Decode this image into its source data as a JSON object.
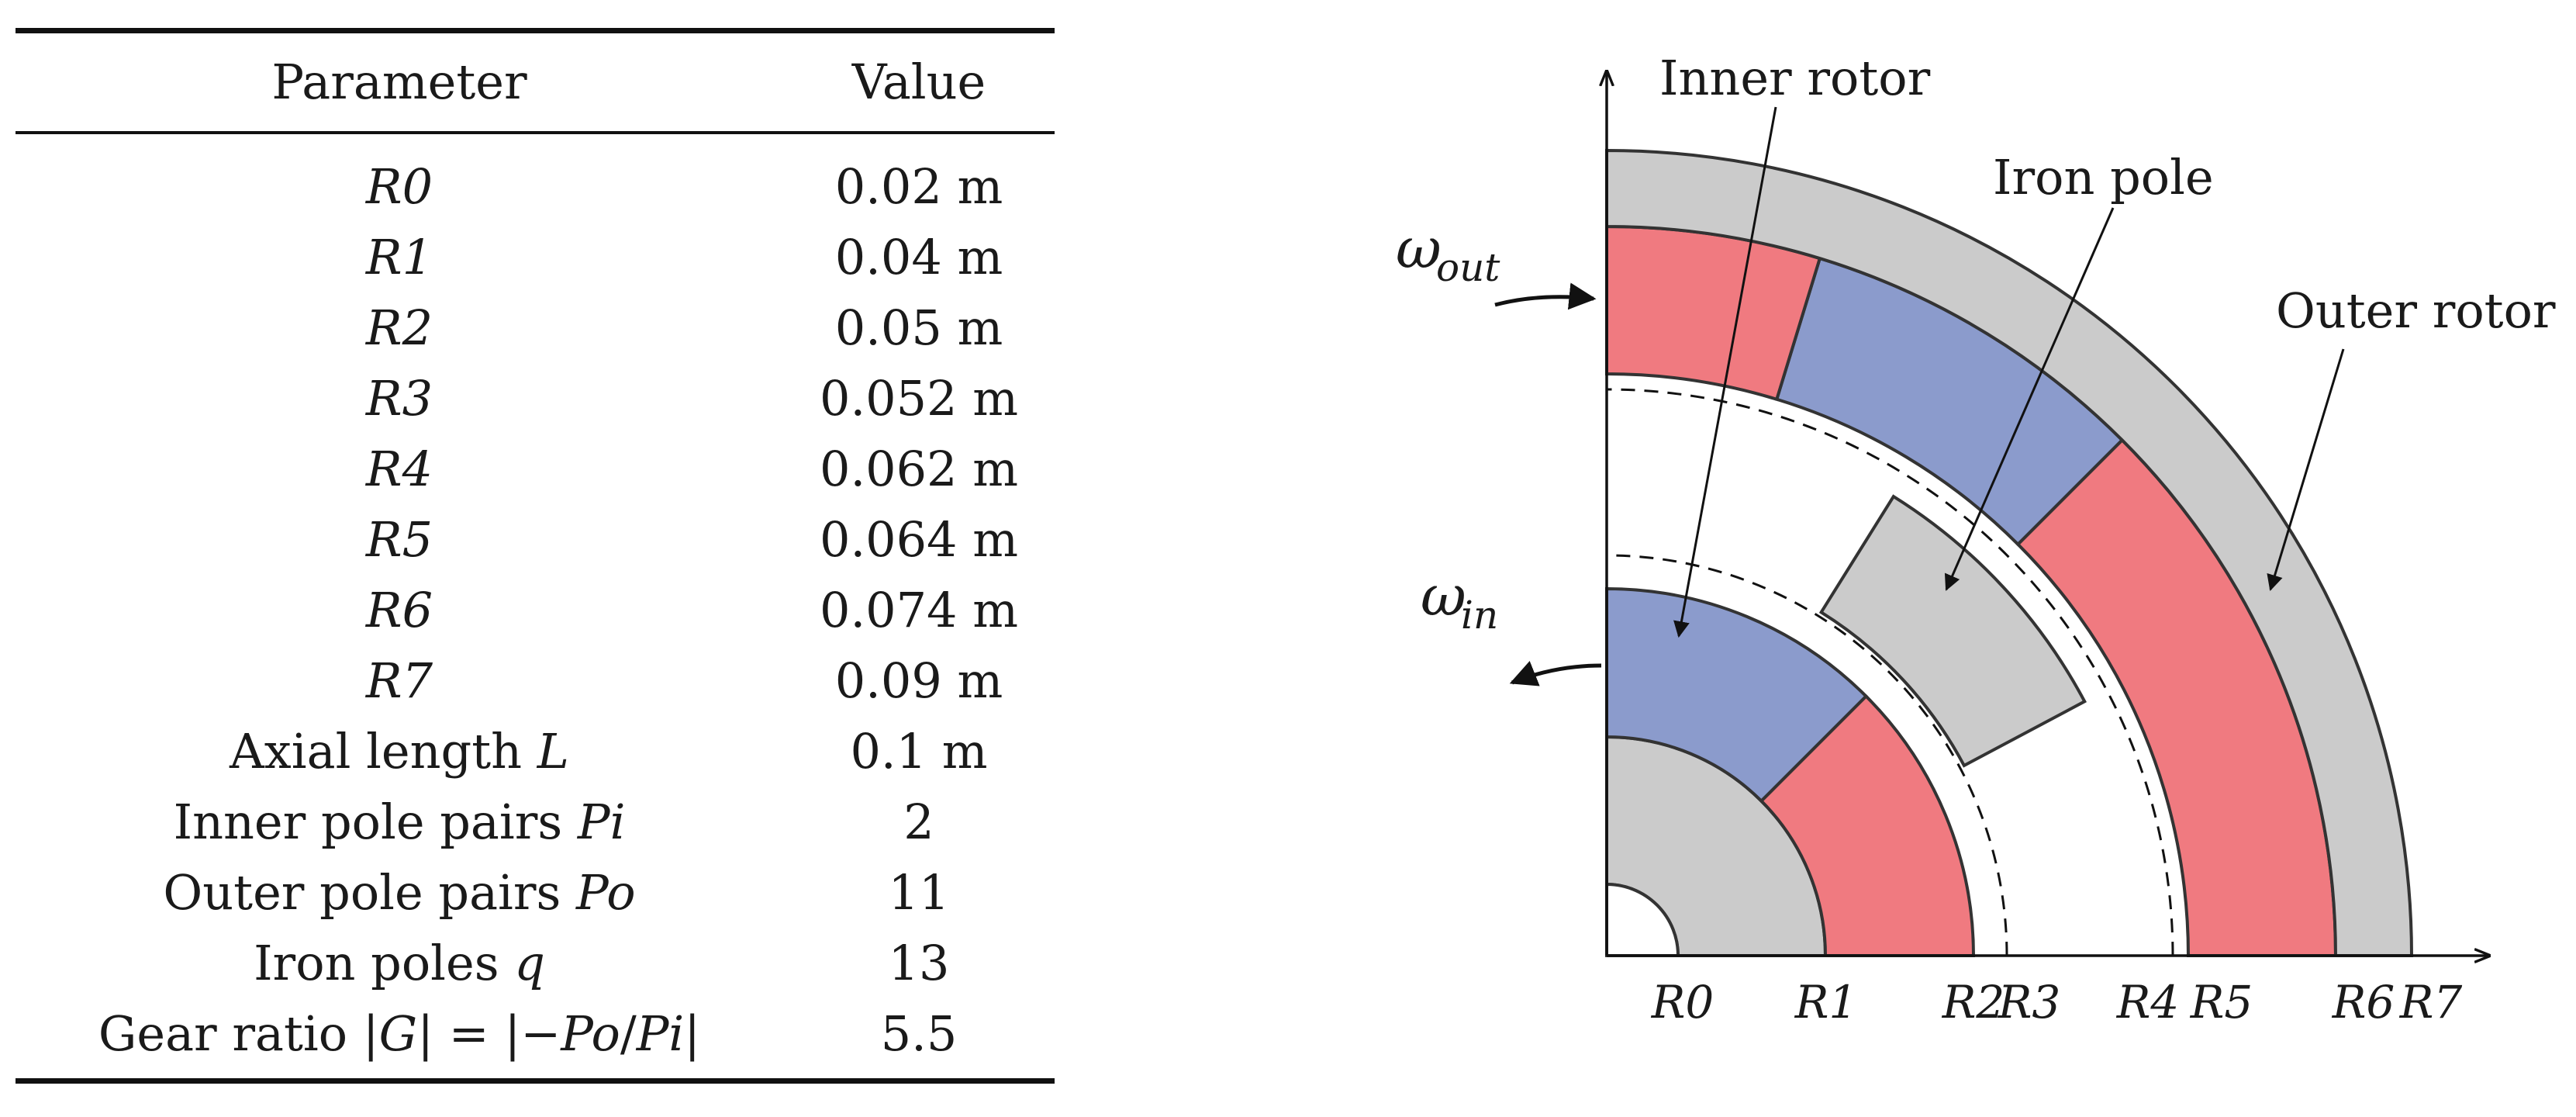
{
  "table": {
    "headers": {
      "parameter": "Parameter",
      "value": "Value"
    },
    "rows": [
      {
        "param_plain": "",
        "param_italic": "R0",
        "value": "0.02 m"
      },
      {
        "param_plain": "",
        "param_italic": "R1",
        "value": "0.04 m"
      },
      {
        "param_plain": "",
        "param_italic": "R2",
        "value": "0.05 m"
      },
      {
        "param_plain": "",
        "param_italic": "R3",
        "value": "0.052 m"
      },
      {
        "param_plain": "",
        "param_italic": "R4",
        "value": "0.062 m"
      },
      {
        "param_plain": "",
        "param_italic": "R5",
        "value": "0.064 m"
      },
      {
        "param_plain": "",
        "param_italic": "R6",
        "value": "0.074 m"
      },
      {
        "param_plain": "",
        "param_italic": "R7",
        "value": "0.09 m"
      },
      {
        "param_plain": "Axial length ",
        "param_italic": "L",
        "value": "0.1 m"
      },
      {
        "param_plain": "Inner pole pairs ",
        "param_italic": "Pi",
        "value": "2"
      },
      {
        "param_plain": "Outer pole pairs ",
        "param_italic": "Po",
        "value": "11"
      },
      {
        "param_plain": "Iron poles ",
        "param_italic": "q",
        "value": "13"
      }
    ],
    "gear_row": {
      "prefix": "Gear ratio |",
      "g": "G",
      "middle": "| = |−",
      "po": "Po",
      "slash": "/",
      "pi": "Pi",
      "suffix": "|",
      "value": "5.5"
    }
  },
  "diagram": {
    "labels": {
      "inner_rotor": "Inner rotor",
      "iron_pole": "Iron pole",
      "outer_rotor": "Outer rotor",
      "omega_out_symbol": "ω",
      "omega_out_sub": "out",
      "omega_in_symbol": "ω",
      "omega_in_sub": "in"
    },
    "radius_labels": [
      "R0",
      "R1",
      "R2",
      "R3",
      "R4",
      "R5",
      "R6",
      "R7"
    ],
    "colors": {
      "magnet_red": "#f07a80",
      "magnet_blue": "#8b9bcc",
      "iron_gray": "#cbcbcb",
      "outline": "#333333"
    }
  }
}
